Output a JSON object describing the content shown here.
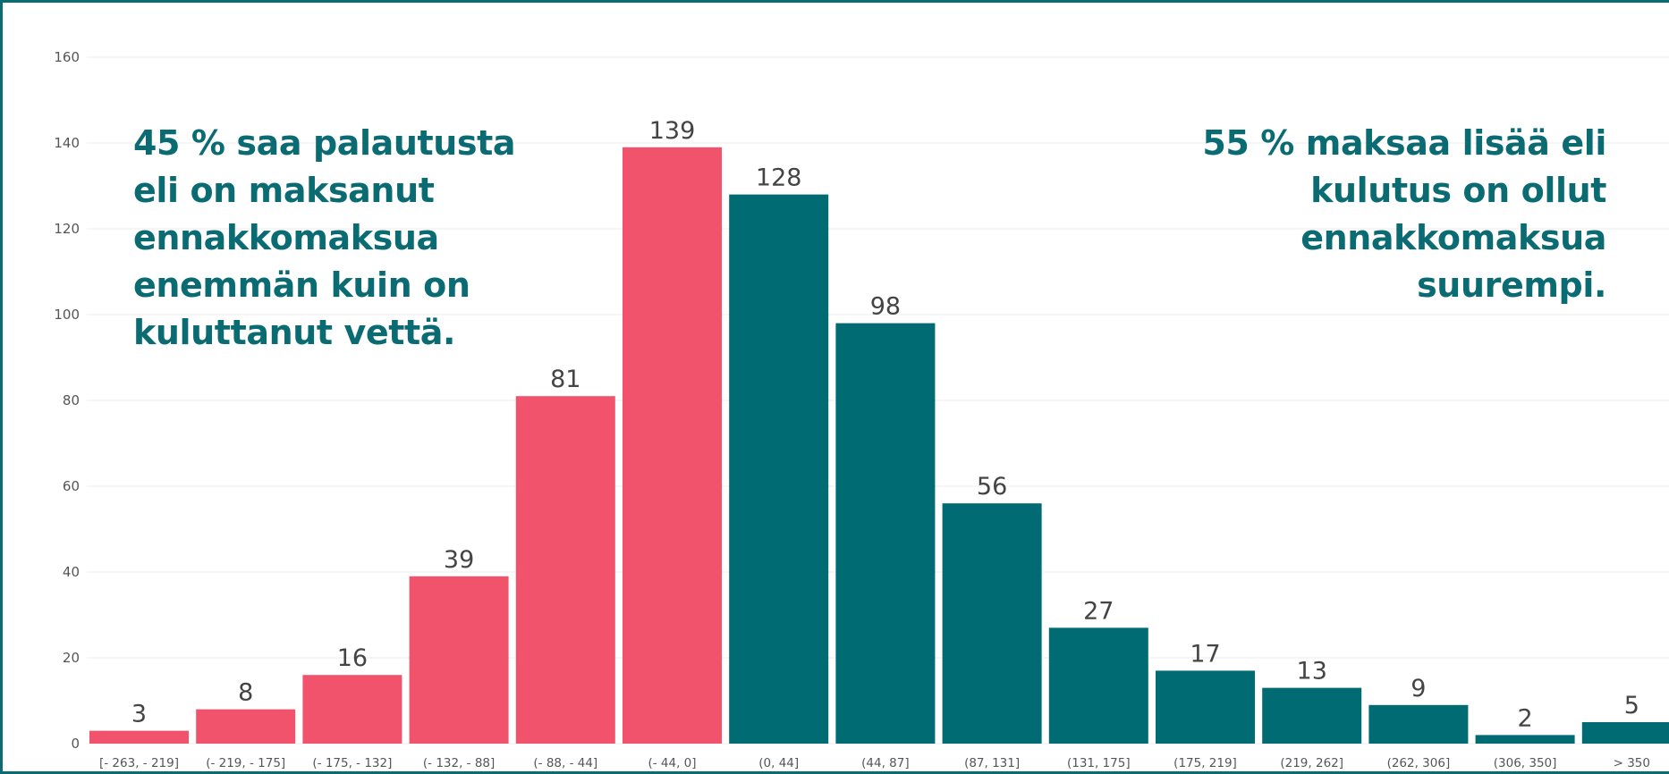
{
  "chart_data": {
    "type": "bar",
    "categories": [
      "[- 263, - 219]",
      "(- 219, - 175]",
      "(- 175, - 132]",
      "(- 132, - 88]",
      "(- 88, - 44]",
      "(- 44, 0]",
      "(0, 44]",
      "(44, 87]",
      "(87, 131]",
      "(131, 175]",
      "(175, 219]",
      "(219, 262]",
      "(262, 306]",
      "(306, 350]",
      "> 350"
    ],
    "values": [
      3,
      8,
      16,
      39,
      81,
      139,
      128,
      98,
      56,
      27,
      17,
      13,
      9,
      2,
      5
    ],
    "bar_colors": [
      "#f0536b",
      "#f0536b",
      "#f0536b",
      "#f0536b",
      "#f0536b",
      "#f0536b",
      "#016b73",
      "#016b73",
      "#016b73",
      "#016b73",
      "#016b73",
      "#016b73",
      "#016b73",
      "#016b73",
      "#016b73"
    ],
    "title": "",
    "xlabel": "",
    "ylabel": "",
    "ylim": [
      0,
      160
    ],
    "yticks": [
      0,
      20,
      40,
      60,
      80,
      100,
      120,
      140,
      160
    ],
    "grid": true,
    "data_labels": true,
    "annotations": [
      {
        "position": "top-left",
        "lines": [
          "45 % saa palautusta",
          "eli on maksanut",
          "ennakkomaksua",
          "enemmän kuin on",
          "kuluttanut vettä."
        ]
      },
      {
        "position": "top-right",
        "lines": [
          "55 % maksaa lisää eli",
          "kulutus on ollut",
          "ennakkomaksua",
          "suurempi."
        ]
      }
    ]
  },
  "colors": {
    "negative": "#f0536b",
    "positive": "#016b73",
    "annotation": "#0b6b73",
    "frame": "#0b6b73"
  }
}
